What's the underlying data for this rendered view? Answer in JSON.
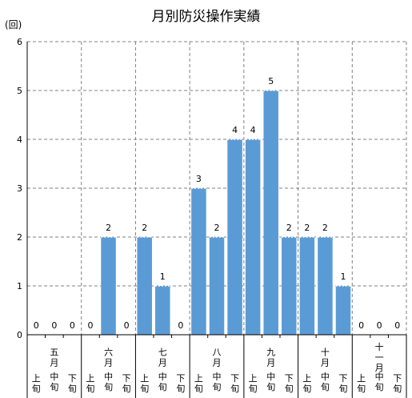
{
  "chart_data": {
    "type": "bar",
    "title": "月別防災操作実績",
    "ylabel": "(回)",
    "ylim": [
      0,
      6
    ],
    "yticks": [
      "0",
      "1",
      "2",
      "3",
      "4",
      "5",
      "6"
    ],
    "grid": true,
    "bar_color": "#5b9bd5",
    "months": [
      "五月",
      "六月",
      "七月",
      "八月",
      "九月",
      "十月",
      "十一月"
    ],
    "periods": [
      "上旬",
      "中旬",
      "下旬"
    ],
    "categories": [
      "五月上旬",
      "五月中旬",
      "五月下旬",
      "六月上旬",
      "六月中旬",
      "六月下旬",
      "七月上旬",
      "七月中旬",
      "七月下旬",
      "八月上旬",
      "八月中旬",
      "八月下旬",
      "九月上旬",
      "九月中旬",
      "九月下旬",
      "十月上旬",
      "十月中旬",
      "十月下旬",
      "十一月上旬",
      "十一月中旬",
      "十一月下旬"
    ],
    "values": [
      0,
      0,
      0,
      0,
      2,
      0,
      2,
      1,
      0,
      3,
      2,
      4,
      4,
      5,
      2,
      2,
      2,
      1,
      0,
      0,
      0
    ]
  }
}
